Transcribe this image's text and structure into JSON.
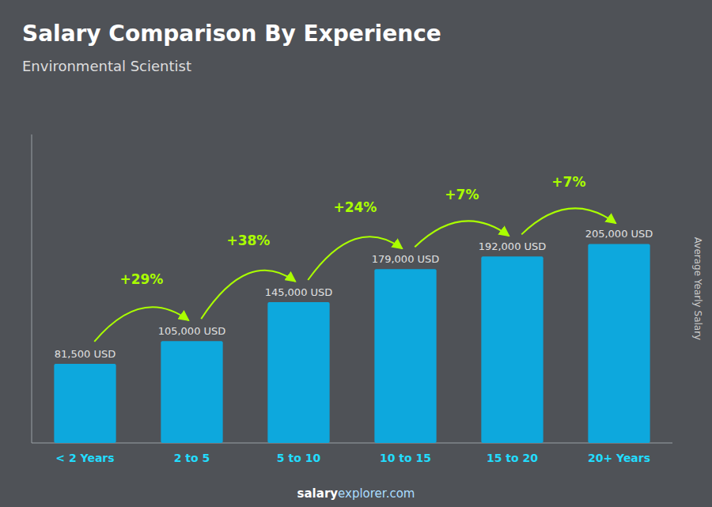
{
  "chart_data": {
    "type": "bar",
    "title": "Salary Comparison By Experience",
    "subtitle": "Environmental Scientist",
    "y_label": "Average Yearly Salary",
    "categories": [
      "< 2 Years",
      "2 to 5",
      "5 to 10",
      "10 to 15",
      "15 to 20",
      "20+ Years"
    ],
    "values": [
      81500,
      105000,
      145000,
      179000,
      192000,
      205000
    ],
    "value_labels": [
      "81,500 USD",
      "105,000 USD",
      "145,000 USD",
      "179,000 USD",
      "192,000 USD",
      "205,000 USD"
    ],
    "data_labels": true,
    "annotations": [
      "+29%",
      "+38%",
      "+24%",
      "+7%",
      "+7%"
    ],
    "footer": [
      "salary",
      "explorer.com"
    ],
    "color": "#0da8dd",
    "ylim": [
      0,
      317750
    ],
    "tick_labels": "x",
    "grid": false
  }
}
